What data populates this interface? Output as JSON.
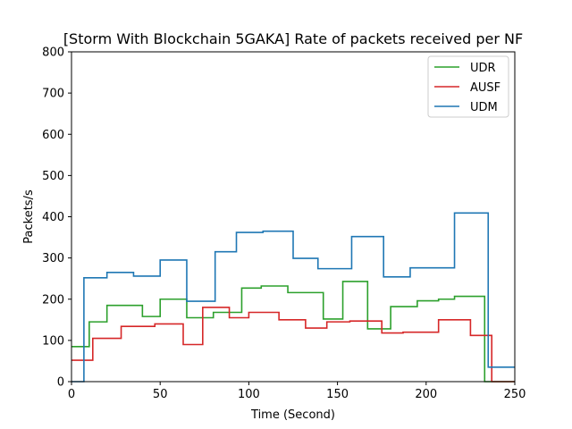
{
  "chart_data": {
    "type": "line",
    "title": "[Storm With Blockchain 5GAKA] Rate of packets received per NF",
    "xlabel": "Time (Second)",
    "ylabel": "Packets/s",
    "xlim": [
      0,
      250
    ],
    "ylim": [
      0,
      800
    ],
    "xticks": [
      0,
      50,
      100,
      150,
      200,
      250
    ],
    "yticks": [
      0,
      100,
      200,
      300,
      400,
      500,
      600,
      700,
      800
    ],
    "grid": false,
    "legend_position": "top-right",
    "step": true,
    "series": [
      {
        "name": "UDR",
        "color": "#2ca02c",
        "x": [
          0,
          8,
          10,
          20,
          40,
          50,
          65,
          80,
          96,
          107,
          122,
          142,
          153,
          167,
          180,
          195,
          207,
          216,
          233,
          235,
          250
        ],
        "y": [
          85,
          85,
          145,
          185,
          158,
          200,
          155,
          168,
          227,
          232,
          216,
          152,
          243,
          128,
          182,
          196,
          200,
          207,
          0,
          0,
          0
        ]
      },
      {
        "name": "AUSF",
        "color": "#d62728",
        "x": [
          0,
          12,
          28,
          47,
          63,
          74,
          89,
          100,
          117,
          132,
          144,
          157,
          175,
          187,
          207,
          225,
          237,
          250
        ],
        "y": [
          52,
          105,
          134,
          140,
          90,
          180,
          155,
          168,
          150,
          130,
          145,
          147,
          118,
          120,
          150,
          112,
          0,
          0
        ],
        "y_note": ""
      },
      {
        "name": "UDM",
        "color": "#1f77b4",
        "x": [
          0,
          7,
          20,
          35,
          50,
          65,
          81,
          93,
          108,
          125,
          139,
          158,
          176,
          191,
          204,
          216,
          235,
          250
        ],
        "y": [
          0,
          252,
          265,
          256,
          295,
          195,
          315,
          362,
          365,
          299,
          274,
          352,
          254,
          276,
          276,
          409,
          35,
          35
        ]
      }
    ]
  }
}
